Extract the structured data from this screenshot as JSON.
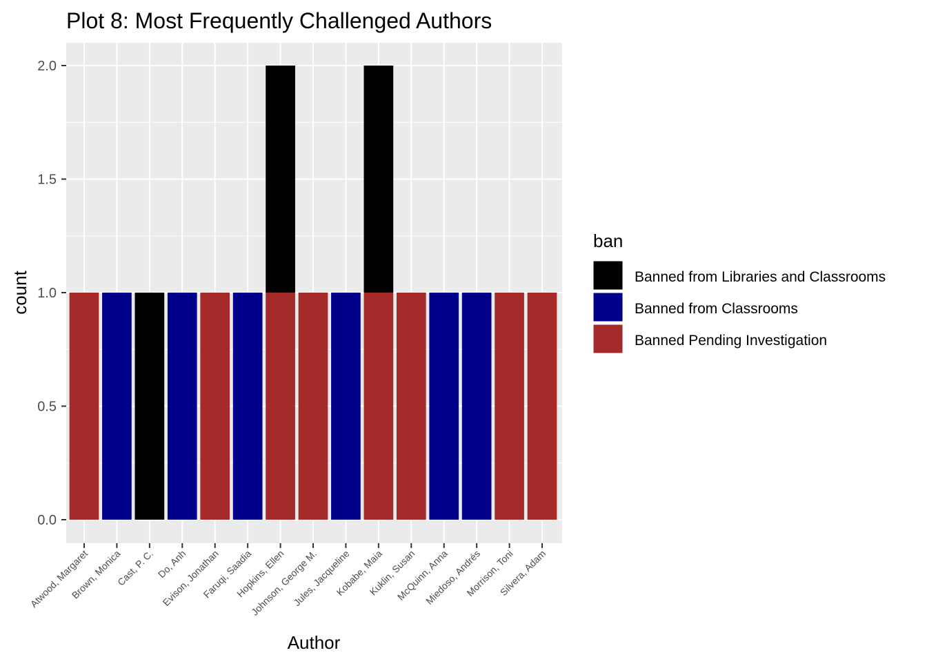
{
  "chart_data": {
    "type": "bar",
    "stacked": true,
    "title": "Plot 8: Most Frequently Challenged Authors",
    "xlabel": "Author",
    "ylabel": "count",
    "ylim": [
      0,
      2
    ],
    "yticks": [
      "0.0",
      "0.5",
      "1.0",
      "1.5",
      "2.0"
    ],
    "ytick_values": [
      0,
      0.5,
      1,
      1.5,
      2
    ],
    "grid": true,
    "legend_title": "ban",
    "legend_position": "right",
    "categories": [
      "Atwood, Margaret",
      "Brown, Monica",
      "Cast, P. C.",
      "Do, Anh",
      "Evison, Jonathan",
      "Faruqi, Saadia",
      "Hopkins, Ellen",
      "Johnson, George M.",
      "Jules, Jacqueline",
      "Kobabe, Maia",
      "Kuklin, Susan",
      "McQuinn, Anna",
      "Miedoso, Andrés",
      "Morrison, Toni",
      "Silvera, Adam"
    ],
    "series": [
      {
        "name": "Banned from Libraries and Classrooms",
        "color": "#000000",
        "values": [
          0,
          0,
          1,
          0,
          0,
          0,
          1,
          0,
          0,
          1,
          0,
          0,
          0,
          0,
          0
        ]
      },
      {
        "name": "Banned from Classrooms",
        "color": "#00008B",
        "values": [
          0,
          1,
          0,
          1,
          0,
          1,
          0,
          0,
          1,
          0,
          0,
          1,
          1,
          0,
          0
        ]
      },
      {
        "name": "Banned Pending Investigation",
        "color": "#A52A2A",
        "values": [
          1,
          0,
          0,
          0,
          1,
          0,
          1,
          1,
          0,
          1,
          1,
          0,
          0,
          1,
          1
        ]
      }
    ]
  }
}
